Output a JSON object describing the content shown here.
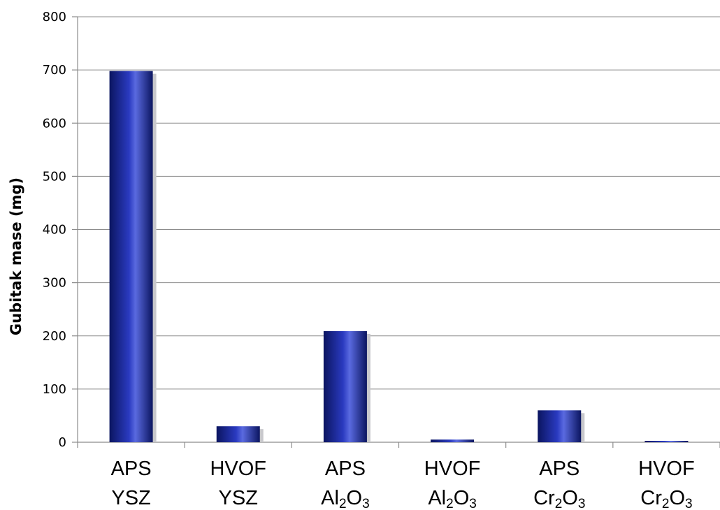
{
  "chart_data": {
    "type": "bar",
    "categories": [
      {
        "line1": "APS",
        "line2": "YSZ"
      },
      {
        "line1": "HVOF",
        "line2": "YSZ"
      },
      {
        "line1": "APS",
        "line2": "Al2O3"
      },
      {
        "line1": "HVOF",
        "line2": "Al2O3"
      },
      {
        "line1": "APS",
        "line2": "Cr2O3"
      },
      {
        "line1": "HVOF",
        "line2": "Cr2O3"
      }
    ],
    "values": [
      698,
      30,
      209,
      5,
      60,
      2
    ],
    "ylabel": "Gubitak mase (mg)",
    "xlabel": "",
    "title": "",
    "ylim": [
      0,
      800
    ],
    "yticks": [
      "0",
      "100",
      "200",
      "300",
      "400",
      "500",
      "600",
      "700",
      "800"
    ],
    "grid": true,
    "legend": "none",
    "colors": {
      "bar_dark": "#0b1560",
      "bar_mid": "#2a3ac0",
      "bar_light": "#5a6ae0",
      "shadow": "#c8c8cc",
      "grid": "#8c8c8c"
    }
  }
}
